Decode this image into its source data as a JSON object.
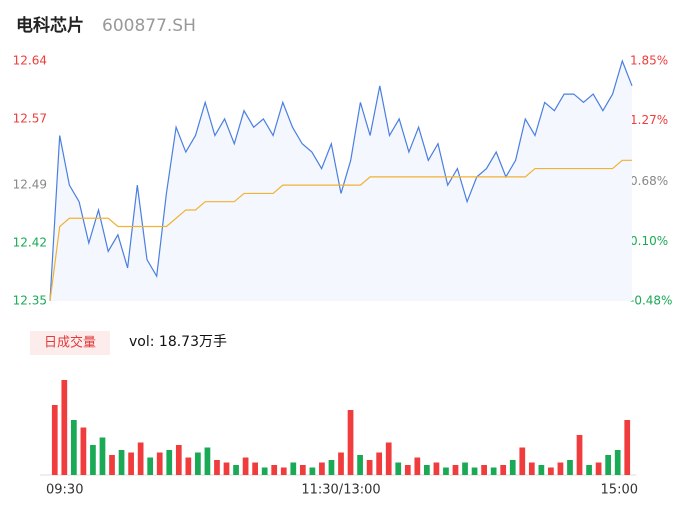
{
  "header": {
    "title": "电科芯片",
    "code": "600877.SH"
  },
  "chart_data": [
    {
      "type": "line",
      "ylim": [
        12.35,
        12.64
      ],
      "yticks": [
        12.35,
        12.42,
        12.49,
        12.57,
        12.64
      ],
      "y2lim": [
        -0.48,
        1.85
      ],
      "y2ticks": [
        -0.48,
        0.1,
        0.68,
        1.27,
        1.85
      ],
      "y2tick_colors": [
        "#1aaa55",
        "#1aaa55",
        "#888888",
        "#f03c3c",
        "#f03c3c"
      ],
      "ytick_colors": [
        "#1aaa55",
        "#1aaa55",
        "#888888",
        "#f03c3c",
        "#f03c3c"
      ],
      "series": [
        {
          "color": "#4a7fe0",
          "values": [
            12.35,
            12.55,
            12.49,
            12.47,
            12.42,
            12.46,
            12.41,
            12.43,
            12.39,
            12.49,
            12.4,
            12.38,
            12.48,
            12.56,
            12.53,
            12.55,
            12.59,
            12.55,
            12.57,
            12.54,
            12.58,
            12.56,
            12.57,
            12.55,
            12.59,
            12.56,
            12.54,
            12.53,
            12.51,
            12.54,
            12.48,
            12.52,
            12.59,
            12.55,
            12.61,
            12.55,
            12.57,
            12.53,
            12.56,
            12.52,
            12.54,
            12.49,
            12.51,
            12.47,
            12.5,
            12.51,
            12.53,
            12.5,
            12.52,
            12.57,
            12.55,
            12.59,
            12.58,
            12.6,
            12.6,
            12.59,
            12.6,
            12.58,
            12.6,
            12.64,
            12.61
          ]
        },
        {
          "color": "#f2b233",
          "values": [
            12.35,
            12.44,
            12.45,
            12.45,
            12.45,
            12.45,
            12.45,
            12.44,
            12.44,
            12.44,
            12.44,
            12.44,
            12.44,
            12.45,
            12.46,
            12.46,
            12.47,
            12.47,
            12.47,
            12.47,
            12.48,
            12.48,
            12.48,
            12.48,
            12.49,
            12.49,
            12.49,
            12.49,
            12.49,
            12.49,
            12.49,
            12.49,
            12.49,
            12.5,
            12.5,
            12.5,
            12.5,
            12.5,
            12.5,
            12.5,
            12.5,
            12.5,
            12.5,
            12.5,
            12.5,
            12.5,
            12.5,
            12.5,
            12.5,
            12.5,
            12.51,
            12.51,
            12.51,
            12.51,
            12.51,
            12.51,
            12.51,
            12.51,
            12.51,
            12.52,
            12.52
          ]
        }
      ]
    },
    {
      "type": "bar",
      "title": "日成交量",
      "subtitle": "vol: 18.73万手",
      "ylim": [
        0,
        4000
      ],
      "categories": [
        "09:30",
        null,
        null,
        null,
        null,
        null,
        null,
        null,
        null,
        null,
        null,
        null,
        null,
        null,
        null,
        null,
        null,
        null,
        null,
        null,
        null,
        null,
        null,
        null,
        null,
        null,
        null,
        null,
        null,
        null,
        "11:30/13:00",
        null,
        null,
        null,
        null,
        null,
        null,
        null,
        null,
        null,
        null,
        null,
        null,
        null,
        null,
        null,
        null,
        null,
        null,
        null,
        null,
        null,
        null,
        null,
        null,
        null,
        null,
        null,
        null,
        null,
        "15:00"
      ],
      "values": [
        2800,
        3800,
        2200,
        1900,
        1200,
        1500,
        800,
        1000,
        900,
        1300,
        700,
        900,
        1000,
        1200,
        700,
        900,
        1100,
        600,
        500,
        400,
        700,
        500,
        300,
        400,
        300,
        500,
        400,
        300,
        500,
        600,
        900,
        2600,
        800,
        600,
        900,
        1300,
        500,
        400,
        700,
        400,
        500,
        300,
        400,
        500,
        300,
        400,
        300,
        400,
        600,
        1100,
        500,
        400,
        300,
        500,
        600,
        1600,
        400,
        500,
        800,
        1000,
        2200
      ],
      "colors": [
        "#f03c3c",
        "#f03c3c",
        "#1aaa55",
        "#f03c3c",
        "#1aaa55",
        "#1aaa55",
        "#f03c3c",
        "#1aaa55",
        "#f03c3c",
        "#f03c3c",
        "#1aaa55",
        "#f03c3c",
        "#1aaa55",
        "#f03c3c",
        "#f03c3c",
        "#1aaa55",
        "#1aaa55",
        "#f03c3c",
        "#f03c3c",
        "#1aaa55",
        "#f03c3c",
        "#f03c3c",
        "#1aaa55",
        "#f03c3c",
        "#f03c3c",
        "#1aaa55",
        "#f03c3c",
        "#1aaa55",
        "#f03c3c",
        "#1aaa55",
        "#f03c3c",
        "#f03c3c",
        "#1aaa55",
        "#f03c3c",
        "#f03c3c",
        "#f03c3c",
        "#1aaa55",
        "#f03c3c",
        "#f03c3c",
        "#1aaa55",
        "#f03c3c",
        "#1aaa55",
        "#f03c3c",
        "#1aaa55",
        "#1aaa55",
        "#f03c3c",
        "#1aaa55",
        "#f03c3c",
        "#1aaa55",
        "#f03c3c",
        "#f03c3c",
        "#1aaa55",
        "#f03c3c",
        "#f03c3c",
        "#1aaa55",
        "#f03c3c",
        "#1aaa55",
        "#f03c3c",
        "#1aaa55",
        "#1aaa55",
        "#f03c3c"
      ]
    }
  ]
}
